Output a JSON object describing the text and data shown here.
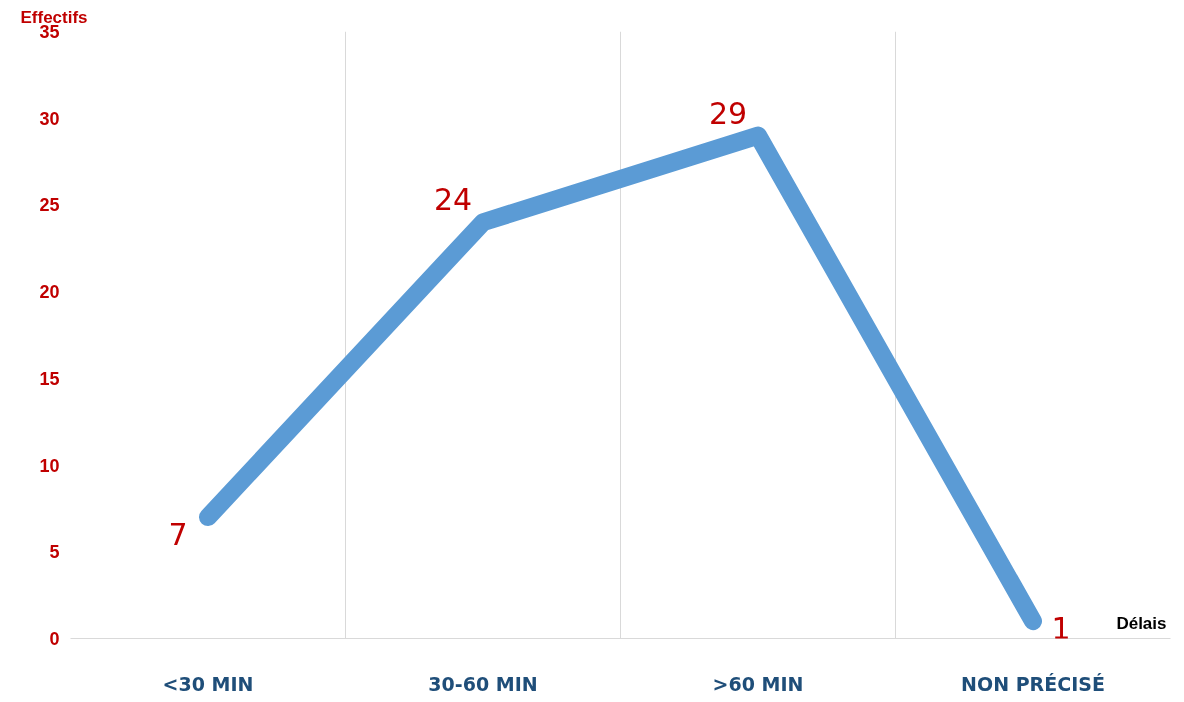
{
  "chart_data": {
    "type": "line",
    "xlabel": "Délais",
    "ylabel": "Effectifs",
    "categories": [
      "<30 MIN",
      "30-60 MIN",
      ">60 MIN",
      "NON PRÉCISÉ"
    ],
    "series": [
      {
        "color": "#5b9bd5",
        "values": [
          7,
          24,
          29,
          1
        ]
      }
    ],
    "ylim": [
      0,
      35
    ],
    "yticks": [
      0,
      5,
      10,
      15,
      20,
      25,
      30,
      35
    ],
    "grid": "x",
    "data_labels": true,
    "line_style": "solid"
  }
}
